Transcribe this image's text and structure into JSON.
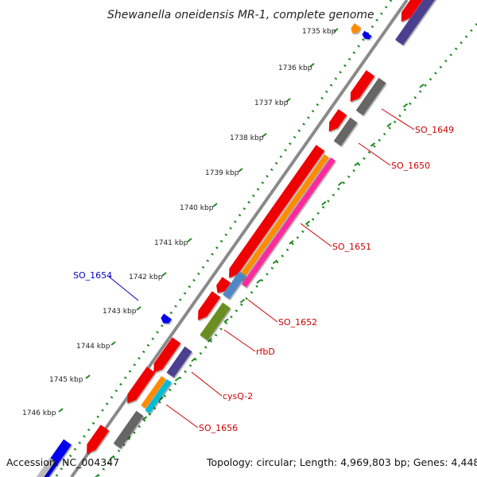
{
  "title": "Shewanella oneidensis MR-1, complete genome",
  "accession_text": "Accession: NC_004347",
  "summary_text": "Topology: circular; Length: 4,969,803 bp; Genes: 4,448",
  "ticks": [
    {
      "label": "1735 kbp"
    },
    {
      "label": "1736 kbp"
    },
    {
      "label": "1737 kbp"
    },
    {
      "label": "1738 kbp"
    },
    {
      "label": "1739 kbp"
    },
    {
      "label": "1740 kbp"
    },
    {
      "label": "1741 kbp"
    },
    {
      "label": "1742 kbp"
    },
    {
      "label": "1743 kbp"
    },
    {
      "label": "1744 kbp"
    },
    {
      "label": "1745 kbp"
    },
    {
      "label": "1746 kbp"
    }
  ],
  "gene_labels": [
    {
      "text": "SO_1649",
      "color": "#cc0000"
    },
    {
      "text": "SO_1650",
      "color": "#cc0000"
    },
    {
      "text": "SO_1651",
      "color": "#cc0000"
    },
    {
      "text": "SO_1652",
      "color": "#cc0000"
    },
    {
      "text": "rfbD",
      "color": "#cc0000"
    },
    {
      "text": "cysQ-2",
      "color": "#cc0000"
    },
    {
      "text": "SO_1656",
      "color": "#cc0000"
    },
    {
      "text": "SO_1654",
      "color": "#0000cc"
    }
  ],
  "colors": {
    "red": "#ee0000",
    "orange": "#ff8c00",
    "magenta": "#ff2a9d",
    "slate_blue": "#4b3f8f",
    "gray": "#666666",
    "steel_blue": "#4f86c6",
    "olive": "#6b8e23",
    "cyan": "#00bcd4",
    "blue": "#0000ee",
    "backbone": "#8a8a8a",
    "dots": "#1f8a1f"
  }
}
